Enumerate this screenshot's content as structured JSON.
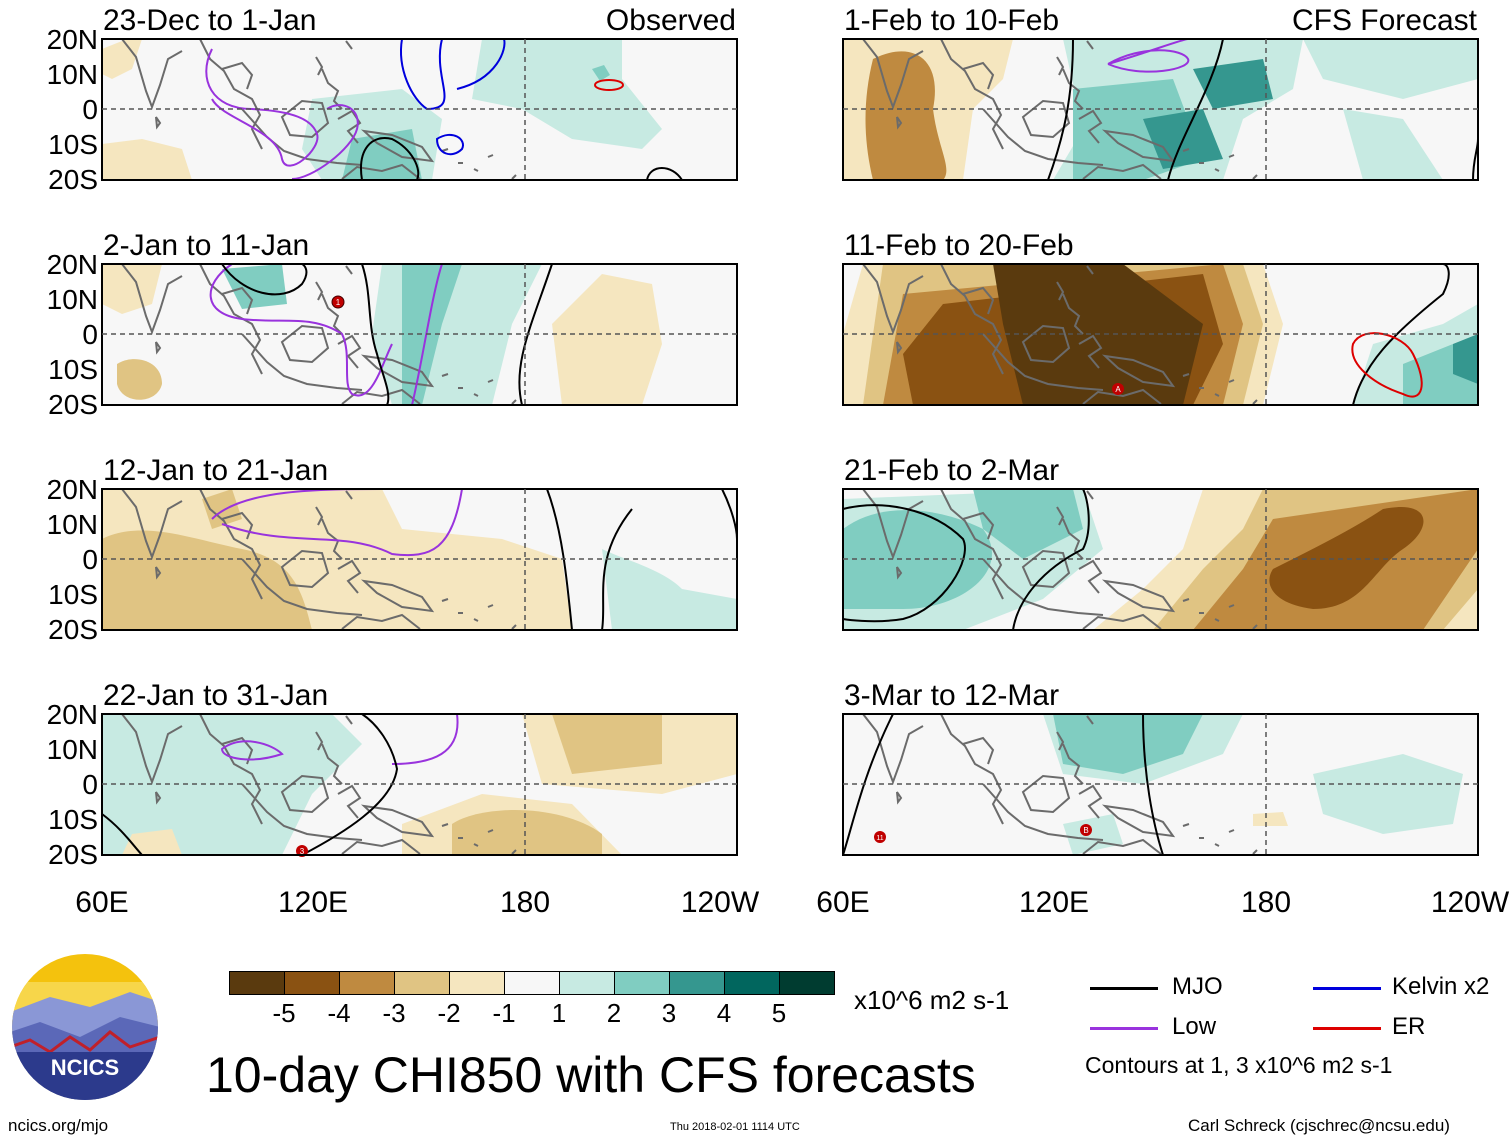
{
  "title": "10-day CHI850 with CFS forecasts",
  "panel_headers": {
    "observed": "Observed",
    "forecast": "CFS Forecast"
  },
  "panels": [
    {
      "id": "p1",
      "column": "left",
      "period": "23-Dec to 1-Jan"
    },
    {
      "id": "p2",
      "column": "left",
      "period": "2-Jan to 11-Jan"
    },
    {
      "id": "p3",
      "column": "left",
      "period": "12-Jan to 21-Jan"
    },
    {
      "id": "p4",
      "column": "left",
      "period": "22-Jan to 31-Jan"
    },
    {
      "id": "p5",
      "column": "right",
      "period": "1-Feb to 10-Feb"
    },
    {
      "id": "p6",
      "column": "right",
      "period": "11-Feb to 20-Feb"
    },
    {
      "id": "p7",
      "column": "right",
      "period": "21-Feb to 2-Mar"
    },
    {
      "id": "p8",
      "column": "right",
      "period": "3-Mar to 12-Mar"
    }
  ],
  "axes": {
    "lat_labels": [
      "20N",
      "10N",
      "0",
      "10S",
      "20S"
    ],
    "lon_labels": [
      "60E",
      "120E",
      "180",
      "120W"
    ]
  },
  "colorbar": {
    "colors": [
      "#5a3a0e",
      "#8a5212",
      "#bf8a40",
      "#e0c483",
      "#f5e6bf",
      "#f7f7f7",
      "#c7eae2",
      "#80cdc1",
      "#35978f",
      "#01665e",
      "#003c30"
    ],
    "ticks": [
      "-5",
      "-4",
      "-3",
      "-2",
      "-1",
      "1",
      "2",
      "3",
      "4",
      "5"
    ],
    "units": "x10^6 m2 s-1"
  },
  "legend": {
    "items": [
      {
        "label": "MJO",
        "color": "#000000"
      },
      {
        "label": "Kelvin x2",
        "color": "#0000dd"
      },
      {
        "label": "Low",
        "color": "#9933dd"
      },
      {
        "label": "ER",
        "color": "#dd0000"
      }
    ],
    "note": "Contours at 1, 3 x10^6 m2 s-1"
  },
  "markers": {
    "p2": "1",
    "p4": "3",
    "p6": "A",
    "p8a": "11",
    "p8b": "B"
  },
  "logo_text": "NCICS",
  "footer": {
    "url": "ncics.org/mjo",
    "timestamp": "Thu 2018-02-01 1114 UTC",
    "credit": "Carl Schreck (cjschrec@ncsu.edu)"
  }
}
